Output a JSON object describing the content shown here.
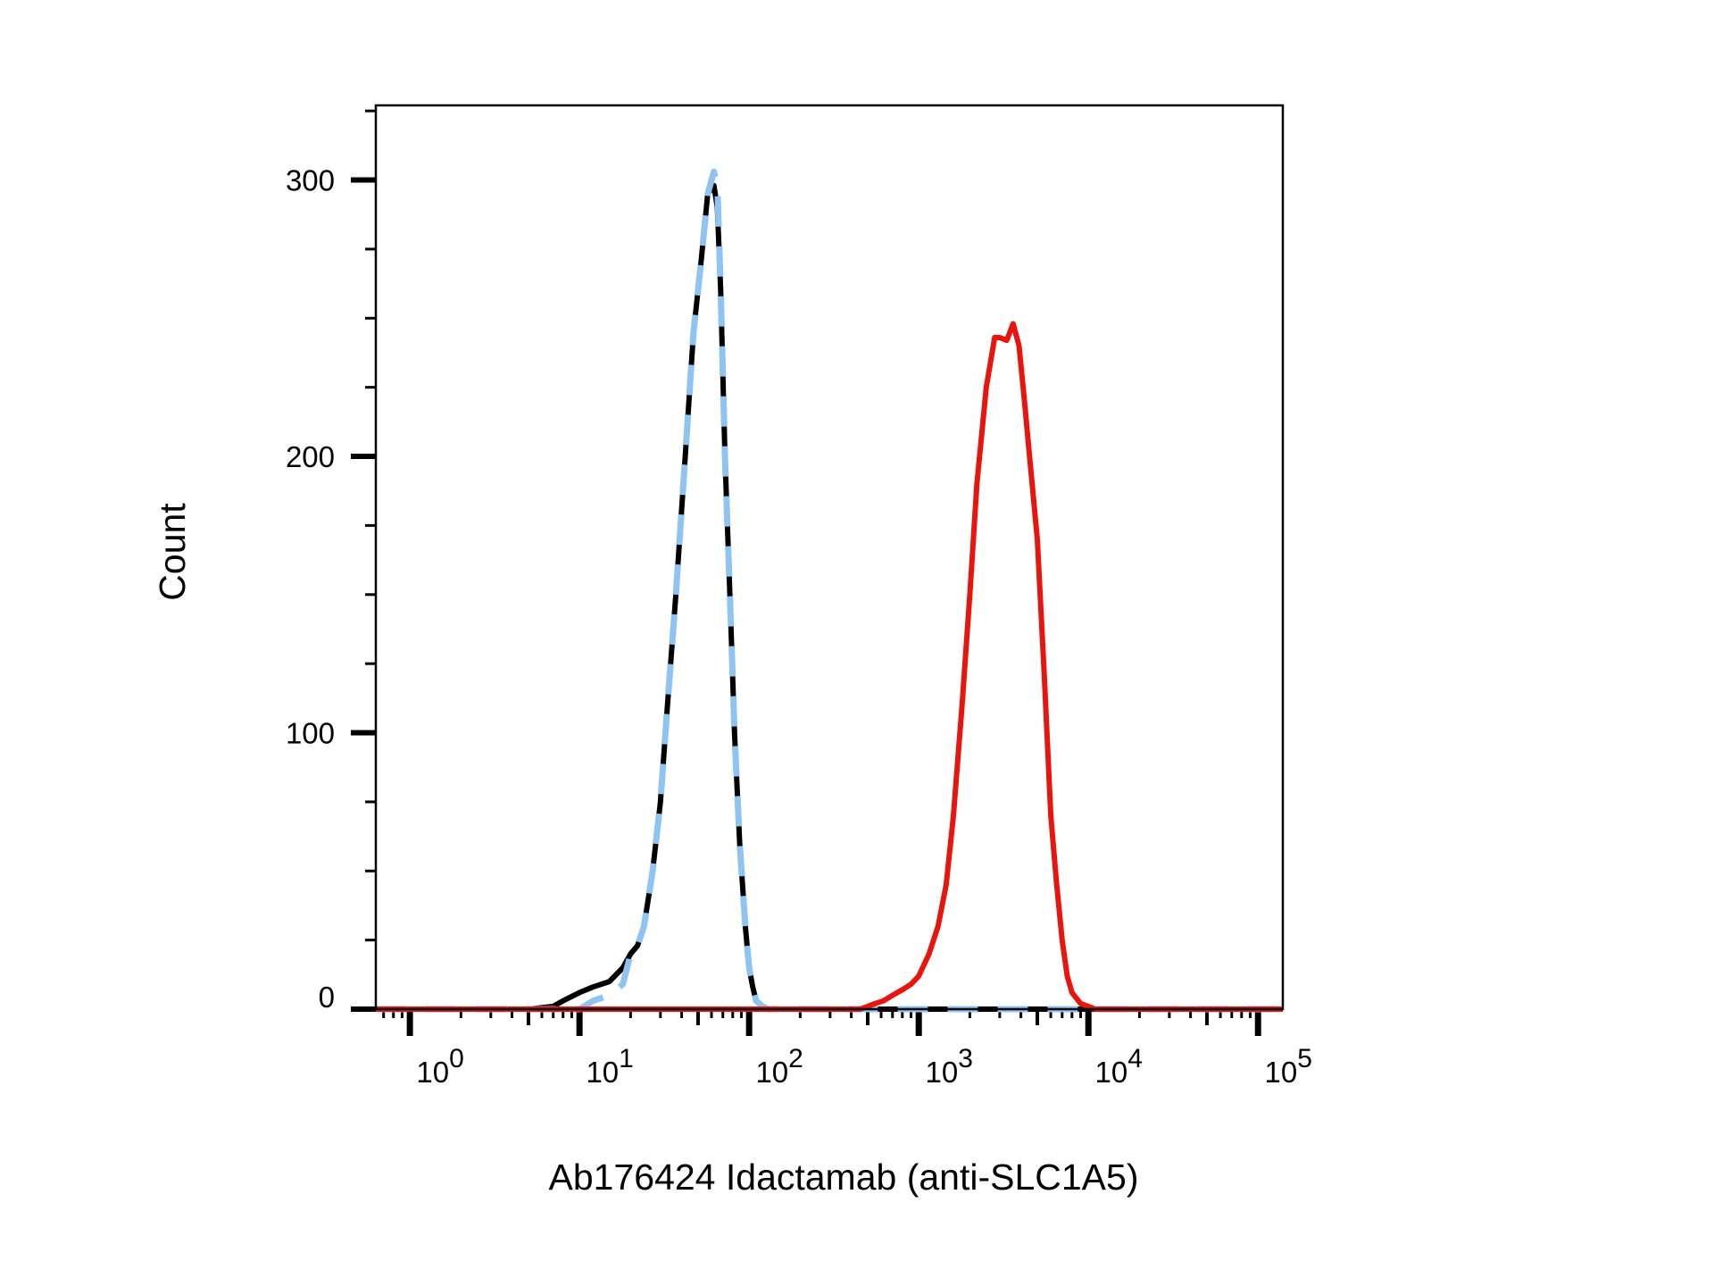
{
  "chart_data": {
    "type": "line",
    "title": "",
    "xlabel": "Ab176424 Idactamab (anti-SLC1A5)",
    "ylabel": "Count",
    "xscale": "log",
    "xlim": [
      0.63,
      140000
    ],
    "ylim": [
      0,
      327
    ],
    "grid": false,
    "legend": "none",
    "x_tick_labels": [
      {
        "base": "10",
        "exp": "0",
        "value": 1
      },
      {
        "base": "10",
        "exp": "1",
        "value": 10
      },
      {
        "base": "10",
        "exp": "2",
        "value": 100
      },
      {
        "base": "10",
        "exp": "3",
        "value": 1000
      },
      {
        "base": "10",
        "exp": "4",
        "value": 10000
      },
      {
        "base": "10",
        "exp": "5",
        "value": 100000
      }
    ],
    "y_tick_labels": [
      {
        "label": "0",
        "value": 0
      },
      {
        "label": "100",
        "value": 100
      },
      {
        "label": "200",
        "value": 200
      },
      {
        "label": "300",
        "value": 300
      }
    ],
    "series": [
      {
        "color": "#000000",
        "style": "solid",
        "x": [
          0.63,
          5,
          7,
          8,
          10,
          12,
          15,
          18,
          20,
          22,
          24,
          27,
          30,
          33,
          37,
          42,
          47,
          52,
          57,
          62,
          65,
          68,
          72,
          77,
          82,
          88,
          95,
          100,
          105,
          110,
          115,
          120,
          130,
          150,
          140000
        ],
        "y": [
          0,
          0,
          1,
          3,
          6,
          8,
          10,
          15,
          20,
          23,
          30,
          50,
          75,
          110,
          150,
          200,
          245,
          270,
          295,
          298,
          290,
          260,
          200,
          150,
          100,
          60,
          30,
          15,
          8,
          3,
          2,
          1,
          0,
          0,
          0
        ]
      },
      {
        "color": "#8EC3F2",
        "style": "dashed",
        "x": [
          0.63,
          10,
          12,
          15,
          18,
          20,
          22,
          24,
          27,
          30,
          33,
          37,
          42,
          47,
          52,
          57,
          62,
          65,
          68,
          72,
          77,
          82,
          88,
          95,
          100,
          105,
          110,
          115,
          120,
          130,
          150,
          200,
          140000
        ],
        "y": [
          0,
          0,
          3,
          5,
          9,
          20,
          23,
          30,
          50,
          75,
          110,
          150,
          200,
          245,
          270,
          295,
          303,
          298,
          260,
          200,
          150,
          100,
          60,
          30,
          15,
          8,
          3,
          2,
          1,
          0,
          0,
          0,
          0
        ]
      },
      {
        "color": "#E8140E",
        "style": "solid",
        "x": [
          0.63,
          450,
          500,
          550,
          620,
          700,
          800,
          900,
          1000,
          1150,
          1300,
          1450,
          1600,
          1800,
          2000,
          2200,
          2500,
          2800,
          3000,
          3300,
          3600,
          3900,
          4200,
          4500,
          5000,
          5500,
          6000,
          6500,
          7000,
          7500,
          8000,
          9000,
          10000,
          11000,
          12500,
          14000,
          140000
        ],
        "y": [
          0,
          0,
          1,
          2,
          3,
          5,
          7,
          9,
          12,
          20,
          30,
          45,
          70,
          110,
          150,
          190,
          225,
          243,
          243,
          242,
          248,
          240,
          220,
          200,
          170,
          120,
          70,
          45,
          25,
          12,
          6,
          2,
          1,
          0,
          0,
          0,
          0
        ]
      }
    ]
  }
}
